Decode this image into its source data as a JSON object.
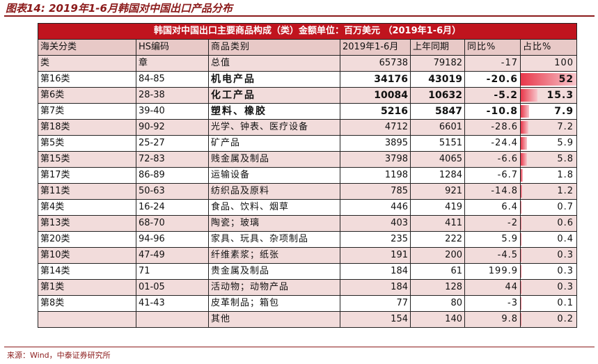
{
  "figure_title": "图表14: 2019年1-6月韩国对中国出口产品分布",
  "table_banner": "韩国对中国出口主要商品构成（类）金额单位：百万美元 （2019年1-6月）",
  "header": [
    "海关分类",
    "HS编码",
    "商品类别",
    "2019年1-6月",
    "上年同期",
    "同比%",
    "占比%"
  ],
  "subheader": [
    "类",
    "章",
    "总值",
    "65738",
    "79182",
    "-17",
    "100"
  ],
  "rows": [
    {
      "cls": "第16类",
      "hs": "84-85",
      "name": "机电产品",
      "cur": "34176",
      "prev": "43019",
      "yoy": "-20.6",
      "share": "52",
      "share_value": 52,
      "bold": true
    },
    {
      "cls": "第6类",
      "hs": "28-38",
      "name": "化工产品",
      "cur": "10084",
      "prev": "10632",
      "yoy": "-5.2",
      "share": "15.3",
      "share_value": 15.3,
      "bold": true
    },
    {
      "cls": "第7类",
      "hs": "39-40",
      "name": "塑料、橡胶",
      "cur": "5216",
      "prev": "5847",
      "yoy": "-10.8",
      "share": "7.9",
      "share_value": 7.9,
      "bold": true
    },
    {
      "cls": "第18类",
      "hs": "90-92",
      "name": "光学、钟表、医疗设备",
      "cur": "4712",
      "prev": "6601",
      "yoy": "-28.6",
      "share": "7.2",
      "share_value": 7.2
    },
    {
      "cls": "第5类",
      "hs": "25-27",
      "name": "矿产品",
      "cur": "3895",
      "prev": "5151",
      "yoy": "-24.4",
      "share": "5.9",
      "share_value": 5.9
    },
    {
      "cls": "第15类",
      "hs": "72-83",
      "name": "贱金属及制品",
      "cur": "3798",
      "prev": "4065",
      "yoy": "-6.6",
      "share": "5.8",
      "share_value": 5.8
    },
    {
      "cls": "第17类",
      "hs": "86-89",
      "name": "运输设备",
      "cur": "1198",
      "prev": "1284",
      "yoy": "-6.7",
      "share": "1.8",
      "share_value": 1.8
    },
    {
      "cls": "第11类",
      "hs": "50-63",
      "name": "纺织品及原料",
      "cur": "785",
      "prev": "921",
      "yoy": "-14.8",
      "share": "1.2",
      "share_value": 1.2
    },
    {
      "cls": "第4类",
      "hs": "16-24",
      "name": "食品、饮料、烟草",
      "cur": "446",
      "prev": "419",
      "yoy": "6.4",
      "share": "0.7",
      "share_value": 0.7
    },
    {
      "cls": "第13类",
      "hs": "68-70",
      "name": "陶瓷；玻璃",
      "cur": "403",
      "prev": "411",
      "yoy": "-2",
      "share": "0.6",
      "share_value": 0.6
    },
    {
      "cls": "第20类",
      "hs": "94-96",
      "name": "家具、玩具、杂项制品",
      "cur": "235",
      "prev": "222",
      "yoy": "5.9",
      "share": "0.4",
      "share_value": 0.4
    },
    {
      "cls": "第10类",
      "hs": "47-49",
      "name": "纤维素浆；纸张",
      "cur": "191",
      "prev": "200",
      "yoy": "-4.5",
      "share": "0.3",
      "share_value": 0.3
    },
    {
      "cls": "第14类",
      "hs": "71",
      "name": "贵金属及制品",
      "cur": "184",
      "prev": "61",
      "yoy": "199.9",
      "share": "0.3",
      "share_value": 0.3
    },
    {
      "cls": "第1类",
      "hs": "01-05",
      "name": "活动物；动物产品",
      "cur": "184",
      "prev": "128",
      "yoy": "44",
      "share": "0.3",
      "share_value": 0.3
    },
    {
      "cls": "第8类",
      "hs": "41-43",
      "name": "皮革制品；箱包",
      "cur": "77",
      "prev": "80",
      "yoy": "-3",
      "share": "0.1",
      "share_value": 0.1
    },
    {
      "cls": "",
      "hs": "",
      "name": "其他",
      "cur": "154",
      "prev": "140",
      "yoy": "9.8",
      "share": "0.2",
      "share_value": 0.2
    }
  ],
  "source": "来源：Wind，中泰证券研究所",
  "colors": {
    "banner": "#C0141E",
    "header": "#E8C9C7",
    "alt_row": "#F2DCDB",
    "bar": "#E8374A",
    "title": "#8B1A1A"
  }
}
